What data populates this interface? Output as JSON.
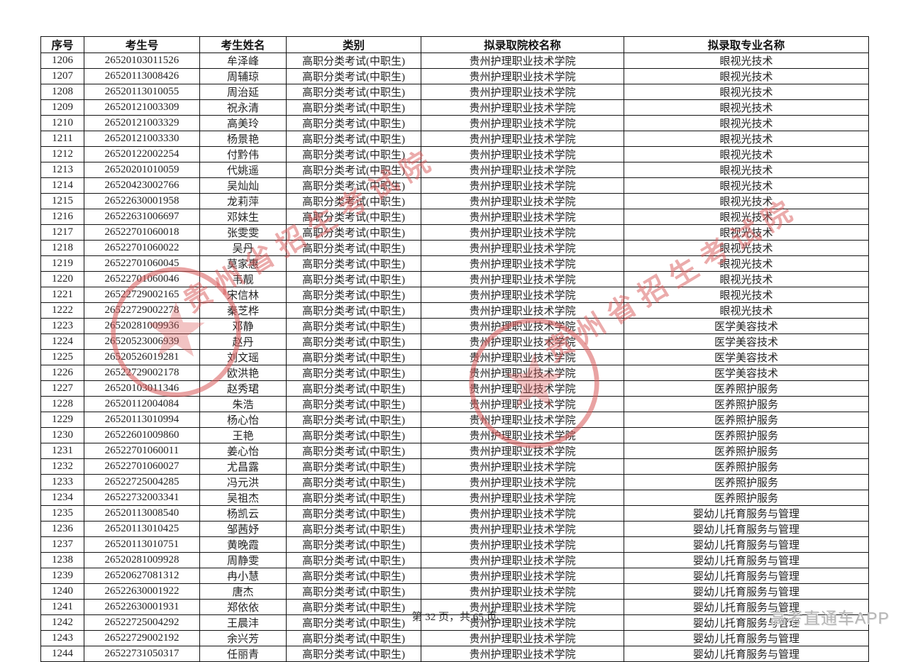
{
  "table": {
    "headers": [
      "序号",
      "考生号",
      "考生姓名",
      "类别",
      "拟录取院校名称",
      "拟录取专业名称"
    ],
    "rows": [
      {
        "no": "1206",
        "id": "26520103011526",
        "name": "牟泽峰",
        "category": "高职分类考试(中职生)",
        "college": "贵州护理职业技术学院",
        "major": "眼视光技术"
      },
      {
        "no": "1207",
        "id": "26520113008426",
        "name": "周辅琼",
        "category": "高职分类考试(中职生)",
        "college": "贵州护理职业技术学院",
        "major": "眼视光技术"
      },
      {
        "no": "1208",
        "id": "26520113010055",
        "name": "周治延",
        "category": "高职分类考试(中职生)",
        "college": "贵州护理职业技术学院",
        "major": "眼视光技术"
      },
      {
        "no": "1209",
        "id": "26520121003309",
        "name": "祝永清",
        "category": "高职分类考试(中职生)",
        "college": "贵州护理职业技术学院",
        "major": "眼视光技术"
      },
      {
        "no": "1210",
        "id": "26520121003329",
        "name": "高美玲",
        "category": "高职分类考试(中职生)",
        "college": "贵州护理职业技术学院",
        "major": "眼视光技术"
      },
      {
        "no": "1211",
        "id": "26520121003330",
        "name": "杨景艳",
        "category": "高职分类考试(中职生)",
        "college": "贵州护理职业技术学院",
        "major": "眼视光技术"
      },
      {
        "no": "1212",
        "id": "26520122002254",
        "name": "付黔伟",
        "category": "高职分类考试(中职生)",
        "college": "贵州护理职业技术学院",
        "major": "眼视光技术"
      },
      {
        "no": "1213",
        "id": "26520201010059",
        "name": "代姚遥",
        "category": "高职分类考试(中职生)",
        "college": "贵州护理职业技术学院",
        "major": "眼视光技术"
      },
      {
        "no": "1214",
        "id": "26520423002766",
        "name": "吴灿灿",
        "category": "高职分类考试(中职生)",
        "college": "贵州护理职业技术学院",
        "major": "眼视光技术"
      },
      {
        "no": "1215",
        "id": "26522630001958",
        "name": "龙莉萍",
        "category": "高职分类考试(中职生)",
        "college": "贵州护理职业技术学院",
        "major": "眼视光技术"
      },
      {
        "no": "1216",
        "id": "26522631006697",
        "name": "邓妹生",
        "category": "高职分类考试(中职生)",
        "college": "贵州护理职业技术学院",
        "major": "眼视光技术"
      },
      {
        "no": "1217",
        "id": "26522701060018",
        "name": "张雯雯",
        "category": "高职分类考试(中职生)",
        "college": "贵州护理职业技术学院",
        "major": "眼视光技术"
      },
      {
        "no": "1218",
        "id": "26522701060022",
        "name": "吴丹",
        "category": "高职分类考试(中职生)",
        "college": "贵州护理职业技术学院",
        "major": "眼视光技术"
      },
      {
        "no": "1219",
        "id": "26522701060045",
        "name": "莫家惠",
        "category": "高职分类考试(中职生)",
        "college": "贵州护理职业技术学院",
        "major": "眼视光技术"
      },
      {
        "no": "1220",
        "id": "26522701060046",
        "name": "韦靓",
        "category": "高职分类考试(中职生)",
        "college": "贵州护理职业技术学院",
        "major": "眼视光技术"
      },
      {
        "no": "1221",
        "id": "26522729002165",
        "name": "宋信林",
        "category": "高职分类考试(中职生)",
        "college": "贵州护理职业技术学院",
        "major": "眼视光技术"
      },
      {
        "no": "1222",
        "id": "26522729002278",
        "name": "秦芝桦",
        "category": "高职分类考试(中职生)",
        "college": "贵州护理职业技术学院",
        "major": "眼视光技术"
      },
      {
        "no": "1223",
        "id": "26520281009936",
        "name": "邓静",
        "category": "高职分类考试(中职生)",
        "college": "贵州护理职业技术学院",
        "major": "医学美容技术"
      },
      {
        "no": "1224",
        "id": "26520523006939",
        "name": "赵丹",
        "category": "高职分类考试(中职生)",
        "college": "贵州护理职业技术学院",
        "major": "医学美容技术"
      },
      {
        "no": "1225",
        "id": "26520526019281",
        "name": "刘文瑶",
        "category": "高职分类考试(中职生)",
        "college": "贵州护理职业技术学院",
        "major": "医学美容技术"
      },
      {
        "no": "1226",
        "id": "26522729002178",
        "name": "欧洪艳",
        "category": "高职分类考试(中职生)",
        "college": "贵州护理职业技术学院",
        "major": "医学美容技术"
      },
      {
        "no": "1227",
        "id": "26520103011346",
        "name": "赵秀珺",
        "category": "高职分类考试(中职生)",
        "college": "贵州护理职业技术学院",
        "major": "医养照护服务"
      },
      {
        "no": "1228",
        "id": "26520112004084",
        "name": "朱浩",
        "category": "高职分类考试(中职生)",
        "college": "贵州护理职业技术学院",
        "major": "医养照护服务"
      },
      {
        "no": "1229",
        "id": "26520113010994",
        "name": "杨心怡",
        "category": "高职分类考试(中职生)",
        "college": "贵州护理职业技术学院",
        "major": "医养照护服务"
      },
      {
        "no": "1230",
        "id": "26522601009860",
        "name": "王艳",
        "category": "高职分类考试(中职生)",
        "college": "贵州护理职业技术学院",
        "major": "医养照护服务"
      },
      {
        "no": "1231",
        "id": "26522701060011",
        "name": "姜心怡",
        "category": "高职分类考试(中职生)",
        "college": "贵州护理职业技术学院",
        "major": "医养照护服务"
      },
      {
        "no": "1232",
        "id": "26522701060027",
        "name": "尤昌露",
        "category": "高职分类考试(中职生)",
        "college": "贵州护理职业技术学院",
        "major": "医养照护服务"
      },
      {
        "no": "1233",
        "id": "26522725004285",
        "name": "冯元洪",
        "category": "高职分类考试(中职生)",
        "college": "贵州护理职业技术学院",
        "major": "医养照护服务"
      },
      {
        "no": "1234",
        "id": "26522732003341",
        "name": "吴祖杰",
        "category": "高职分类考试(中职生)",
        "college": "贵州护理职业技术学院",
        "major": "医养照护服务"
      },
      {
        "no": "1235",
        "id": "26520113008540",
        "name": "杨凯云",
        "category": "高职分类考试(中职生)",
        "college": "贵州护理职业技术学院",
        "major": "婴幼儿托育服务与管理"
      },
      {
        "no": "1236",
        "id": "26520113010425",
        "name": "邹茜妤",
        "category": "高职分类考试(中职生)",
        "college": "贵州护理职业技术学院",
        "major": "婴幼儿托育服务与管理"
      },
      {
        "no": "1237",
        "id": "26520113010751",
        "name": "黄晚霞",
        "category": "高职分类考试(中职生)",
        "college": "贵州护理职业技术学院",
        "major": "婴幼儿托育服务与管理"
      },
      {
        "no": "1238",
        "id": "26520281009928",
        "name": "周静雯",
        "category": "高职分类考试(中职生)",
        "college": "贵州护理职业技术学院",
        "major": "婴幼儿托育服务与管理"
      },
      {
        "no": "1239",
        "id": "26520627081312",
        "name": "冉小慧",
        "category": "高职分类考试(中职生)",
        "college": "贵州护理职业技术学院",
        "major": "婴幼儿托育服务与管理"
      },
      {
        "no": "1240",
        "id": "26522630001922",
        "name": "唐杰",
        "category": "高职分类考试(中职生)",
        "college": "贵州护理职业技术学院",
        "major": "婴幼儿托育服务与管理"
      },
      {
        "no": "1241",
        "id": "26522630001931",
        "name": "郑依依",
        "category": "高职分类考试(中职生)",
        "college": "贵州护理职业技术学院",
        "major": "婴幼儿托育服务与管理"
      },
      {
        "no": "1242",
        "id": "26522725004292",
        "name": "王晨沣",
        "category": "高职分类考试(中职生)",
        "college": "贵州护理职业技术学院",
        "major": "婴幼儿托育服务与管理"
      },
      {
        "no": "1243",
        "id": "26522729002192",
        "name": "余兴芳",
        "category": "高职分类考试(中职生)",
        "college": "贵州护理职业技术学院",
        "major": "婴幼儿托育服务与管理"
      },
      {
        "no": "1244",
        "id": "26522731050317",
        "name": "任丽青",
        "category": "高职分类考试(中职生)",
        "college": "贵州护理职业技术学院",
        "major": "婴幼儿托育服务与管理"
      }
    ]
  },
  "footer": {
    "page_info": "第 32 页，共 65 页",
    "app_name": "高考直通车APP"
  },
  "watermark": {
    "text": "贵州省招生考试院",
    "color": "#d85858"
  }
}
